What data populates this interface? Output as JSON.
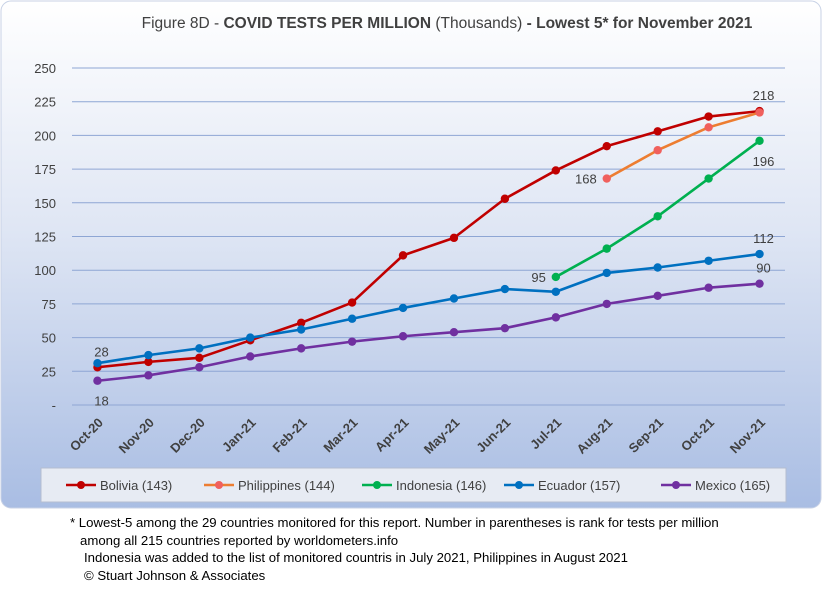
{
  "chart_data": {
    "type": "line",
    "title_prefix": "Figure 8D - ",
    "title_bold": "COVID TESTS PER MILLION",
    "title_mid": " (Thousands) ",
    "title_suffix_bold": "- Lowest 5* for November 2021",
    "categories": [
      "Oct-20",
      "Nov-20",
      "Dec-20",
      "Jan-21",
      "Feb-21",
      "Mar-21",
      "Apr-21",
      "May-21",
      "Jun-21",
      "Jul-21",
      "Aug-21",
      "Sep-21",
      "Oct-21",
      "Nov-21"
    ],
    "ylim": [
      0,
      250
    ],
    "yticks": [
      "-",
      "25",
      "50",
      "75",
      "100",
      "125",
      "150",
      "175",
      "200",
      "225",
      "250"
    ],
    "grid": true,
    "legend_position": "bottom",
    "series": [
      {
        "name": "Bolivia (143)",
        "color": "#C00000",
        "values": [
          28,
          32,
          35,
          48,
          61,
          76,
          111,
          124,
          153,
          174,
          192,
          203,
          214,
          218
        ]
      },
      {
        "name": "Philippines (144)",
        "color": "#ED7D31",
        "marker_color": "#F0605D",
        "values": [
          null,
          null,
          null,
          null,
          null,
          null,
          null,
          null,
          null,
          null,
          168,
          189,
          206,
          217
        ]
      },
      {
        "name": "Indonesia (146)",
        "color": "#00B050",
        "values": [
          null,
          null,
          null,
          null,
          null,
          null,
          null,
          null,
          null,
          95,
          116,
          140,
          168,
          196
        ]
      },
      {
        "name": "Ecuador (157)",
        "color": "#0070C0",
        "values": [
          31,
          37,
          42,
          50,
          56,
          64,
          72,
          79,
          86,
          84,
          98,
          102,
          107,
          112
        ]
      },
      {
        "name": "Mexico (165)",
        "color": "#7030A0",
        "values": [
          18,
          22,
          28,
          36,
          42,
          47,
          51,
          54,
          57,
          65,
          75,
          81,
          87,
          90
        ]
      }
    ],
    "data_labels": [
      {
        "text": "218",
        "series": 0,
        "index": 13,
        "pos": "above"
      },
      {
        "text": "168",
        "series": 1,
        "index": 10,
        "pos": "left"
      },
      {
        "text": "196",
        "series": 2,
        "index": 13,
        "pos": "below"
      },
      {
        "text": "95",
        "series": 2,
        "index": 9,
        "pos": "left"
      },
      {
        "text": "112",
        "series": 3,
        "index": 13,
        "pos": "above"
      },
      {
        "text": "90",
        "series": 4,
        "index": 13,
        "pos": "above"
      },
      {
        "text": "28",
        "series": 0,
        "index": 0,
        "pos": "above"
      },
      {
        "text": "18",
        "series": 4,
        "index": 0,
        "pos": "below"
      }
    ]
  },
  "footnote": {
    "line1": "* Lowest-5 among the 29 countries monitored for this report. Number in parentheses is rank for tests per million",
    "line2": "among all 215 countries reported by worldometers.info",
    "line3": "Indonesia was added to the list of monitored countris in July 2021, Philippines in August 2021",
    "line4": "© Stuart Johnson & Associates"
  }
}
